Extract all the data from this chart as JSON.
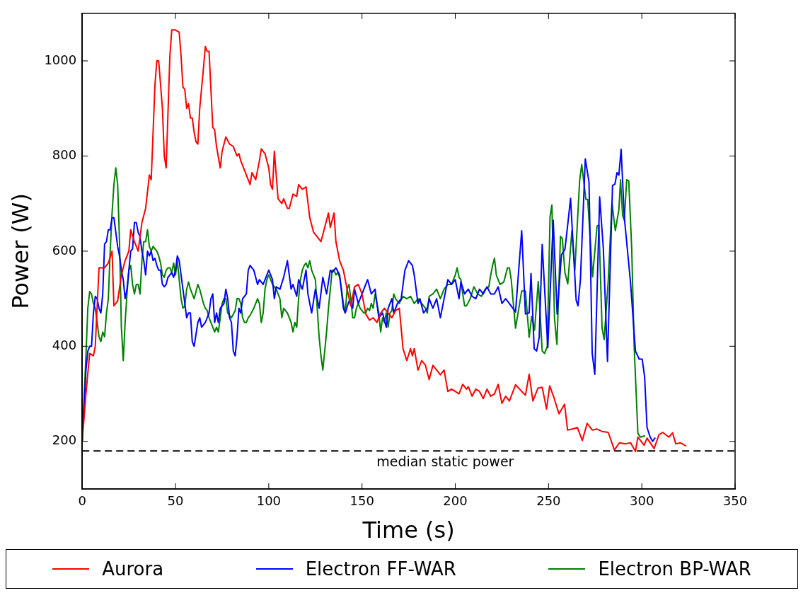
{
  "chart_data": {
    "type": "line",
    "xlabel": "Time (s)",
    "ylabel": "Power (W)",
    "xlim": [
      0,
      350
    ],
    "xticks": [
      0,
      50,
      100,
      150,
      200,
      250,
      300,
      350
    ],
    "ylim": [
      100,
      1100
    ],
    "yticks": [
      200,
      400,
      600,
      800,
      1000
    ],
    "grid": false,
    "legend": "bottom",
    "marker": "none",
    "line_style": "solid",
    "ref_lines": [
      {
        "axis": "y",
        "value": 180,
        "label": "median static power",
        "color": "#000000",
        "line_style": "dashed"
      }
    ],
    "series": [
      {
        "name": "Aurora",
        "color": "#ff0000",
        "x": [
          0,
          2,
          4,
          6,
          7,
          9,
          12,
          14,
          16,
          17,
          19,
          21,
          23,
          25,
          26,
          28,
          30,
          32,
          34,
          36,
          37,
          39,
          40,
          41,
          43,
          44,
          45,
          47,
          48,
          50,
          52,
          53,
          54,
          55,
          56,
          57,
          58,
          59,
          60,
          61,
          62,
          63,
          65,
          66,
          67,
          68,
          70,
          71,
          72,
          74,
          75,
          77,
          79,
          81,
          83,
          84,
          85,
          87,
          88,
          90,
          91,
          93,
          95,
          96,
          98,
          100,
          101,
          102,
          103,
          105,
          107,
          108,
          110,
          111,
          113,
          115,
          116,
          118,
          120,
          122,
          124,
          126,
          128,
          130,
          132,
          133,
          135,
          136,
          138,
          140,
          142,
          144,
          146,
          148,
          150,
          152,
          154,
          156,
          158,
          160,
          162,
          164,
          166,
          168,
          170,
          172,
          174,
          176,
          177,
          178,
          180,
          182,
          184,
          186,
          188,
          190,
          192,
          194,
          196,
          198,
          200,
          202,
          204,
          206,
          207,
          209,
          211,
          213,
          215,
          217,
          219,
          221,
          223,
          225,
          227,
          229,
          232.3,
          237.6,
          239.6,
          241.6,
          244.3,
          246.6,
          248.9,
          250.6,
          252.9,
          255.6,
          258.6,
          260.2,
          262.8,
          265.5,
          268.1,
          270.7,
          273.4,
          276,
          278.7,
          282,
          285.3,
          288,
          291.3,
          294,
          296.6,
          297.9,
          301.2,
          302.8,
          306.6,
          309.2,
          311.2,
          314.5,
          316.5,
          318.2,
          320.8,
          323.8
        ],
        "values": [
          200,
          300,
          385,
          380,
          400,
          565,
          565,
          575,
          600,
          485,
          495,
          550,
          580,
          600,
          645,
          620,
          600,
          660,
          690,
          760,
          750,
          950,
          1000,
          1000,
          900,
          800,
          775,
          1010,
          1065,
          1065,
          1060,
          1010,
          945,
          940,
          900,
          910,
          880,
          880,
          850,
          830,
          825,
          900,
          985,
          1030,
          1020,
          1020,
          860,
          855,
          820,
          775,
          810,
          840,
          825,
          820,
          800,
          805,
          790,
          770,
          760,
          740,
          765,
          750,
          790,
          815,
          805,
          775,
          740,
          730,
          810,
          710,
          700,
          710,
          690,
          690,
          720,
          715,
          740,
          730,
          735,
          670,
          640,
          630,
          620,
          650,
          680,
          650,
          680,
          620,
          580,
          560,
          520,
          485,
          525,
          530,
          510,
          468,
          455,
          460,
          450,
          470,
          480,
          470,
          460,
          475,
          480,
          395,
          370,
          395,
          380,
          395,
          350,
          370,
          360,
          330,
          360,
          350,
          340,
          350,
          305,
          310,
          305,
          300,
          320,
          310,
          315,
          295,
          310,
          305,
          290,
          310,
          295,
          300,
          320,
          280,
          295,
          285,
          319,
          297,
          341,
          285,
          312,
          314,
          268,
          317,
          292,
          258,
          278,
          224,
          226,
          229,
          202,
          238,
          224,
          226,
          221,
          219,
          182,
          197,
          195,
          197,
          179,
          209,
          192,
          207,
          185,
          214,
          219,
          209,
          218,
          195,
          197,
          190
        ]
      },
      {
        "name": "Electron FF-WAR",
        "color": "#0000ff",
        "x": [
          0,
          2,
          3,
          4,
          5,
          6,
          7,
          8,
          9,
          10,
          11,
          12,
          13,
          14,
          15,
          16,
          17,
          18,
          19,
          20,
          21,
          22,
          23,
          24,
          25,
          26,
          27,
          28,
          29,
          30,
          31,
          32,
          33,
          34,
          35,
          36,
          37,
          38,
          39,
          40,
          41,
          42,
          43,
          44,
          45,
          46,
          48,
          49,
          50,
          51,
          52,
          53,
          54,
          55,
          56,
          57,
          58,
          59,
          60,
          62,
          63,
          64,
          66,
          67,
          68,
          69,
          70,
          71,
          72,
          73,
          74,
          76,
          77,
          78,
          79,
          80,
          81,
          82,
          83,
          84,
          85,
          86,
          88,
          89,
          90,
          92,
          94,
          95,
          97,
          100,
          102,
          103,
          104,
          106,
          108,
          110,
          112,
          113,
          115,
          116,
          118,
          120,
          121,
          123,
          125,
          127,
          129,
          131,
          133,
          134,
          136,
          138,
          140,
          141,
          143,
          145,
          146,
          148,
          150,
          153,
          155,
          157,
          159,
          161,
          163,
          164,
          166,
          167,
          169,
          171,
          173,
          175,
          177,
          178,
          180,
          181,
          183,
          185,
          186,
          188,
          190,
          192,
          194,
          196,
          198,
          200,
          202,
          203,
          205,
          207,
          209,
          211,
          213,
          215,
          217,
          219,
          221,
          223,
          225,
          227,
          229,
          232.3,
          235.6,
          237.6,
          239.6,
          240.6,
          242.3,
          243.6,
          245,
          246.6,
          249.6,
          252.5,
          254.6,
          256.9,
          258.8,
          260.2,
          261.8,
          264.8,
          265.8,
          267.1,
          269.7,
          271.7,
          273.4,
          274.8,
          277.4,
          279.4,
          281.6,
          284.3,
          285.6,
          286.7,
          287.7,
          288.9,
          290.6,
          293.9,
          296.6,
          298.6,
          300.2,
          301.5,
          302.8,
          304.5,
          305.8,
          307.2
        ],
        "values": [
          200,
          350,
          390,
          400,
          400,
          470,
          505,
          500,
          480,
          470,
          510,
          615,
          620,
          645,
          645,
          670,
          670,
          640,
          610,
          590,
          560,
          540,
          500,
          520,
          560,
          600,
          605,
          660,
          660,
          640,
          630,
          600,
          580,
          550,
          600,
          590,
          600,
          580,
          585,
          570,
          560,
          560,
          530,
          525,
          530,
          545,
          555,
          545,
          560,
          590,
          580,
          550,
          520,
          490,
          460,
          470,
          470,
          410,
          400,
          450,
          460,
          440,
          450,
          460,
          470,
          500,
          510,
          450,
          470,
          450,
          480,
          490,
          520,
          500,
          460,
          450,
          390,
          380,
          420,
          480,
          470,
          500,
          510,
          560,
          570,
          560,
          530,
          540,
          530,
          560,
          540,
          500,
          525,
          520,
          545,
          580,
          520,
          530,
          505,
          540,
          520,
          560,
          510,
          470,
          520,
          480,
          545,
          510,
          560,
          555,
          565,
          550,
          480,
          470,
          495,
          480,
          520,
          490,
          510,
          540,
          510,
          520,
          460,
          470,
          440,
          480,
          500,
          470,
          490,
          500,
          560,
          580,
          570,
          550,
          490,
          500,
          470,
          480,
          500,
          480,
          500,
          460,
          500,
          540,
          530,
          540,
          500,
          535,
          510,
          520,
          505,
          500,
          520,
          510,
          525,
          510,
          510,
          525,
          490,
          500,
          490,
          472,
          643,
          468,
          470,
          553,
          395,
          390,
          419,
          614,
          397,
          665,
          468,
          592,
          604,
          653,
          711,
          497,
          485,
          541,
          794,
          745,
          385,
          341,
          714,
          604,
          368,
          738,
          741,
          765,
          760,
          814,
          672,
          536,
          390,
          373,
          373,
          336,
          229,
          209,
          200,
          208
        ]
      },
      {
        "name": "Electron BP-WAR",
        "color": "#008000",
        "x": [
          0,
          2,
          3,
          4,
          5,
          6,
          7,
          8,
          9,
          10,
          11,
          12,
          13,
          14,
          15,
          16,
          17,
          18,
          19,
          20,
          21,
          22,
          23,
          24,
          25,
          26,
          27,
          28,
          29,
          30,
          31,
          32,
          33,
          34,
          35,
          36,
          37,
          38,
          39,
          40,
          41,
          42,
          43,
          44,
          45,
          46,
          47,
          48,
          49,
          50,
          51,
          52,
          53,
          54,
          55,
          56,
          57,
          58,
          59,
          60,
          62,
          63,
          64,
          65,
          66,
          67,
          68,
          69,
          70,
          71,
          72,
          73,
          74,
          75,
          76,
          77,
          78,
          80,
          82,
          83,
          84,
          85,
          86,
          87,
          88,
          89,
          90,
          92,
          94,
          95,
          96,
          97,
          98,
          99,
          100,
          101,
          102,
          104,
          106,
          107,
          108,
          110,
          112,
          113,
          114,
          115,
          116,
          117,
          118,
          119,
          120,
          121,
          122,
          123,
          124,
          125,
          126,
          127,
          128,
          129,
          130,
          131,
          132,
          133,
          134,
          135,
          136,
          137,
          138,
          139,
          140,
          141,
          142,
          143,
          144,
          145,
          146,
          147,
          148,
          149,
          150,
          151,
          152,
          153,
          154,
          155,
          156,
          157,
          158,
          159,
          160,
          161,
          162,
          163,
          164,
          165,
          166,
          167,
          168,
          170,
          172,
          174,
          176,
          178,
          180,
          182,
          184,
          185,
          186,
          188,
          190,
          192,
          194,
          196,
          198,
          200,
          201,
          202,
          203,
          204,
          205,
          206,
          208,
          210,
          212,
          214,
          216,
          218,
          219,
          220,
          221,
          222,
          224,
          226,
          228,
          229,
          230,
          232.3,
          235.6,
          237.6,
          239.6,
          241,
          242.5,
          244.5,
          246.6,
          247.9,
          249.3,
          250.8,
          251.8,
          253.2,
          254.5,
          256.4,
          257.4,
          258.8,
          260.3,
          262.5,
          264.1,
          266.7,
          267.8,
          270,
          271,
          273.6,
          276,
          277,
          278.7,
          279.8,
          282,
          284,
          285.8,
          287.7,
          288.6,
          289.7,
          290.6,
          291.9,
          293,
          294.6,
          295.9,
          297.9,
          299.2,
          301.8
        ],
        "values": [
          200,
          380,
          480,
          515,
          510,
          490,
          480,
          450,
          420,
          410,
          430,
          420,
          470,
          500,
          600,
          680,
          740,
          775,
          740,
          620,
          440,
          370,
          450,
          510,
          560,
          570,
          530,
          510,
          530,
          530,
          510,
          580,
          620,
          620,
          645,
          610,
          600,
          610,
          605,
          600,
          590,
          575,
          550,
          545,
          560,
          565,
          565,
          555,
          575,
          550,
          580,
          540,
          500,
          480,
          485,
          520,
          535,
          520,
          510,
          500,
          530,
          520,
          505,
          490,
          480,
          475,
          460,
          450,
          440,
          430,
          440,
          430,
          460,
          490,
          500,
          500,
          470,
          460,
          475,
          500,
          500,
          490,
          460,
          450,
          450,
          460,
          465,
          480,
          500,
          490,
          450,
          470,
          520,
          540,
          550,
          540,
          530,
          520,
          500,
          460,
          480,
          470,
          450,
          430,
          450,
          440,
          500,
          540,
          560,
          570,
          575,
          565,
          580,
          560,
          550,
          540,
          480,
          420,
          380,
          350,
          390,
          430,
          480,
          520,
          560,
          560,
          550,
          555,
          545,
          520,
          490,
          470,
          520,
          530,
          500,
          460,
          460,
          480,
          490,
          480,
          475,
          470,
          470,
          480,
          475,
          490,
          480,
          510,
          490,
          470,
          430,
          460,
          450,
          470,
          440,
          470,
          475,
          510,
          500,
          490,
          505,
          500,
          505,
          490,
          500,
          490,
          480,
          470,
          505,
          510,
          520,
          500,
          520,
          530,
          530,
          550,
          565,
          545,
          540,
          510,
          485,
          485,
          500,
          525,
          510,
          505,
          520,
          525,
          550,
          570,
          585,
          550,
          530,
          535,
          565,
          565,
          540,
          438,
          516,
          516,
          419,
          463,
          434,
          536,
          390,
          385,
          400,
          672,
          697,
          458,
          404,
          631,
          626,
          555,
          531,
          643,
          560,
          750,
          782,
          709,
          709,
          546,
          653,
          655,
          438,
          414,
          538,
          702,
          643,
          687,
          750,
          675,
          665,
          750,
          748,
          604,
          399,
          217,
          209,
          212
        ]
      }
    ]
  }
}
